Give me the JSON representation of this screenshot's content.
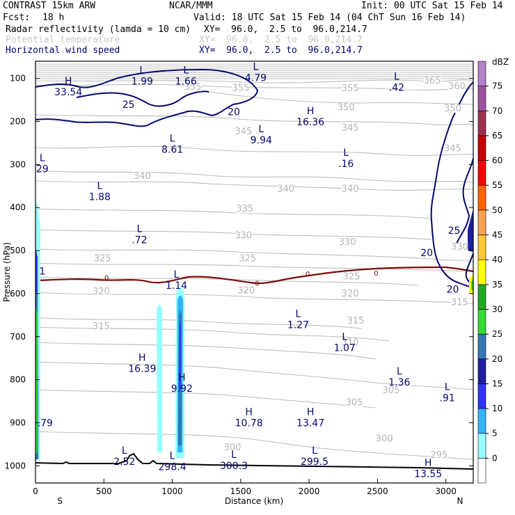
{
  "header": {
    "model": "CONTRAST 15km ARW",
    "center": "NCAR/MMM",
    "init": "Init: 00 UTC Sat 15 Feb 14",
    "fcst_label": "Fcst:",
    "fcst_value": "18 h",
    "valid": "Valid: 18 UTC Sat 15 Feb 14 (04 ChT Sun 16 Feb 14)",
    "fields": [
      {
        "name": "Radar reflectivity (lamda = 10 cm)",
        "xy": "XY=  96.0,  2.5 to  96.0,214.7",
        "color": "#000000"
      },
      {
        "name": "Potential temperature",
        "xy": "XY=  96.0,  2.5 to  96.0,214.7",
        "color": "#c8c8c8"
      },
      {
        "name": "Horizontal wind speed",
        "xy": "XY=  96.0,  2.5 to  96.0,214.7",
        "color": "#00006e"
      }
    ]
  },
  "chart_data": {
    "type": "cross-section",
    "xlabel": "Distance (km)",
    "ylabel": "Pressure (hPa)",
    "xlim": [
      0,
      3200
    ],
    "ylim": [
      1040,
      60
    ],
    "x_ticks": [
      0,
      500,
      1000,
      1500,
      2000,
      2500,
      3000
    ],
    "y_ticks": [
      100,
      200,
      300,
      400,
      500,
      600,
      700,
      800,
      900,
      1000
    ],
    "x_ends": {
      "left": "S",
      "right": "N"
    },
    "colorbar": {
      "unit": "dBZ",
      "levels": [
        0,
        5,
        10,
        15,
        20,
        25,
        30,
        35,
        40,
        45,
        50,
        55,
        60,
        65,
        70,
        75
      ],
      "colors": [
        "#ffffff",
        "#96ffff",
        "#32b4ff",
        "#3232ff",
        "#1e1ea0",
        "#3278b4",
        "#32dc32",
        "#1eaa1e",
        "#ffff00",
        "#ffc832",
        "#ffa050",
        "#ff6400",
        "#ff0000",
        "#c80000",
        "#a03250",
        "#a050a0",
        "#b482c8"
      ]
    },
    "theta_labels": [
      {
        "x": 1500,
        "p": 127,
        "t": "355"
      },
      {
        "x": 1150,
        "p": 125,
        "t": "355"
      },
      {
        "x": 2300,
        "p": 128,
        "t": "355"
      },
      {
        "x": 2900,
        "p": 110,
        "t": "365"
      },
      {
        "x": 3080,
        "p": 123,
        "t": "360"
      },
      {
        "x": 2270,
        "p": 172,
        "t": "350"
      },
      {
        "x": 3050,
        "p": 175,
        "t": "350"
      },
      {
        "x": 1520,
        "p": 228,
        "t": "345"
      },
      {
        "x": 2300,
        "p": 220,
        "t": "345"
      },
      {
        "x": 3050,
        "p": 268,
        "t": "345"
      },
      {
        "x": 780,
        "p": 332,
        "t": "340"
      },
      {
        "x": 1830,
        "p": 362,
        "t": "340"
      },
      {
        "x": 2300,
        "p": 362,
        "t": "340"
      },
      {
        "x": 1530,
        "p": 408,
        "t": "335"
      },
      {
        "x": 1520,
        "p": 470,
        "t": "330"
      },
      {
        "x": 2280,
        "p": 485,
        "t": "330"
      },
      {
        "x": 3100,
        "p": 497,
        "t": "330"
      },
      {
        "x": 490,
        "p": 523,
        "t": "325"
      },
      {
        "x": 1550,
        "p": 523,
        "t": "325"
      },
      {
        "x": 2310,
        "p": 565,
        "t": "325"
      },
      {
        "x": 480,
        "p": 600,
        "t": "320"
      },
      {
        "x": 1540,
        "p": 598,
        "t": "320"
      },
      {
        "x": 2300,
        "p": 605,
        "t": "320"
      },
      {
        "x": 3100,
        "p": 625,
        "t": "315"
      },
      {
        "x": 480,
        "p": 681,
        "t": "315"
      },
      {
        "x": 2340,
        "p": 668,
        "t": "315"
      },
      {
        "x": 2300,
        "p": 718,
        "t": "310"
      },
      {
        "x": 2600,
        "p": 830,
        "t": "305"
      },
      {
        "x": 2330,
        "p": 858,
        "t": "305"
      },
      {
        "x": 2550,
        "p": 942,
        "t": "300"
      },
      {
        "x": 1440,
        "p": 962,
        "t": "300"
      },
      {
        "x": 2950,
        "p": 980,
        "t": "295"
      }
    ],
    "extrema": [
      {
        "x": 780,
        "p": 88,
        "mark": "L",
        "v": "1.99"
      },
      {
        "x": 1100,
        "p": 88,
        "mark": "L",
        "v": "1.66"
      },
      {
        "x": 1610,
        "p": 80,
        "mark": "L",
        "v": "4.79"
      },
      {
        "x": 2640,
        "p": 103,
        "mark": "L",
        "v": ".42"
      },
      {
        "x": 240,
        "p": 113,
        "mark": "H",
        "v": "33.54"
      },
      {
        "x": 2010,
        "p": 183,
        "mark": "H",
        "v": "16.36"
      },
      {
        "x": 1650,
        "p": 225,
        "mark": "L",
        "v": "9.94"
      },
      {
        "x": 1000,
        "p": 247,
        "mark": "L",
        "v": "8.61"
      },
      {
        "x": 2270,
        "p": 280,
        "mark": "L",
        "v": ".16"
      },
      {
        "x": 50,
        "p": 292,
        "mark": "L",
        "v": "29"
      },
      {
        "x": 470,
        "p": 357,
        "mark": "L",
        "v": "1.88"
      },
      {
        "x": 760,
        "p": 457,
        "mark": "L",
        "v": ".72"
      },
      {
        "x": 50,
        "p": 530,
        "mark": "",
        "v": "1"
      },
      {
        "x": 1030,
        "p": 563,
        "mark": "L",
        "v": "1.14"
      },
      {
        "x": 1920,
        "p": 654,
        "mark": "L",
        "v": "1.27"
      },
      {
        "x": 2260,
        "p": 708,
        "mark": "L",
        "v": "1.07"
      },
      {
        "x": 780,
        "p": 756,
        "mark": "H",
        "v": "16.39"
      },
      {
        "x": 1070,
        "p": 802,
        "mark": "H",
        "v": "9.92"
      },
      {
        "x": 2660,
        "p": 788,
        "mark": "L",
        "v": "1.36"
      },
      {
        "x": 3010,
        "p": 824,
        "mark": "L",
        "v": ".91"
      },
      {
        "x": 70,
        "p": 882,
        "mark": "",
        "v": ".79"
      },
      {
        "x": 1560,
        "p": 882,
        "mark": "H",
        "v": "10.78"
      },
      {
        "x": 2010,
        "p": 882,
        "mark": "H",
        "v": "13.47"
      },
      {
        "x": 650,
        "p": 972,
        "mark": "L",
        "v": "2.52"
      },
      {
        "x": 1000,
        "p": 984,
        "mark": "L",
        "v": "298.4"
      },
      {
        "x": 1450,
        "p": 982,
        "mark": "L",
        "v": "300.3"
      },
      {
        "x": 2040,
        "p": 972,
        "mark": "L",
        "v": "299.5"
      },
      {
        "x": 2870,
        "p": 1000,
        "mark": "H",
        "v": "13.55"
      }
    ],
    "wind_labels": [
      {
        "x": 680,
        "p": 160,
        "t": "25"
      },
      {
        "x": 1450,
        "p": 177,
        "t": "20"
      },
      {
        "x": 3060,
        "p": 453,
        "t": "25"
      },
      {
        "x": 2860,
        "p": 505,
        "t": "20"
      },
      {
        "x": 3050,
        "p": 590,
        "t": "20"
      }
    ],
    "zero_labels": [
      {
        "x": 520,
        "p": 562,
        "t": "0"
      },
      {
        "x": 1620,
        "p": 575,
        "t": "0"
      },
      {
        "x": 1990,
        "p": 553,
        "t": "0"
      },
      {
        "x": 2490,
        "p": 552,
        "t": "0"
      }
    ]
  }
}
